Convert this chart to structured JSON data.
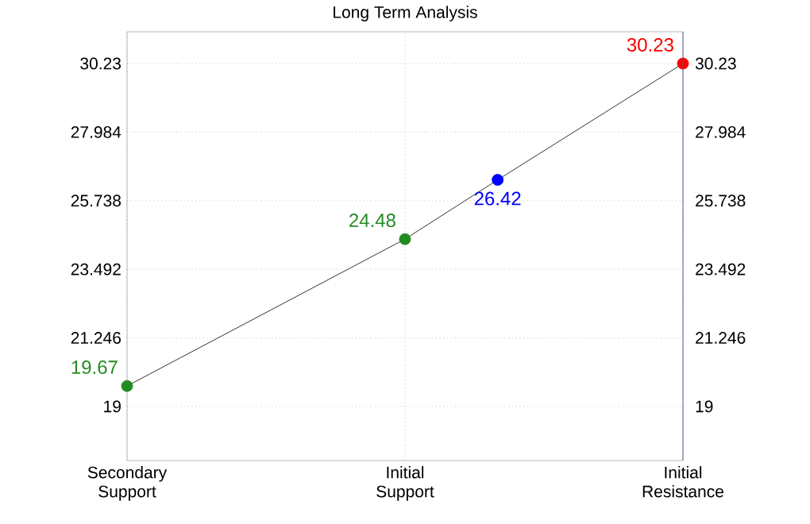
{
  "chart_data": {
    "type": "line",
    "title": "Long Term Analysis",
    "categories": [
      "Secondary Support",
      null,
      null,
      "Initial Support",
      null,
      null,
      "Initial Resistance"
    ],
    "ylim": [
      17.23,
      31.27
    ],
    "yticks": [
      19,
      21.246,
      23.492,
      25.738,
      27.984,
      30.23
    ],
    "y2lim": [
      17.23,
      31.27
    ],
    "y2ticks": [
      19,
      21.246,
      23.492,
      25.738,
      27.984,
      30.23
    ],
    "series": [
      {
        "color": "#000000",
        "values": [
          19.67,
          null,
          null,
          24.48,
          26.42,
          null,
          30.23
        ],
        "colors": [
          "#228b22",
          null,
          null,
          "#228b22",
          "#0000ff",
          null,
          "#ff0000"
        ]
      }
    ],
    "marker": "circle",
    "data_labels": true,
    "grid": true
  }
}
